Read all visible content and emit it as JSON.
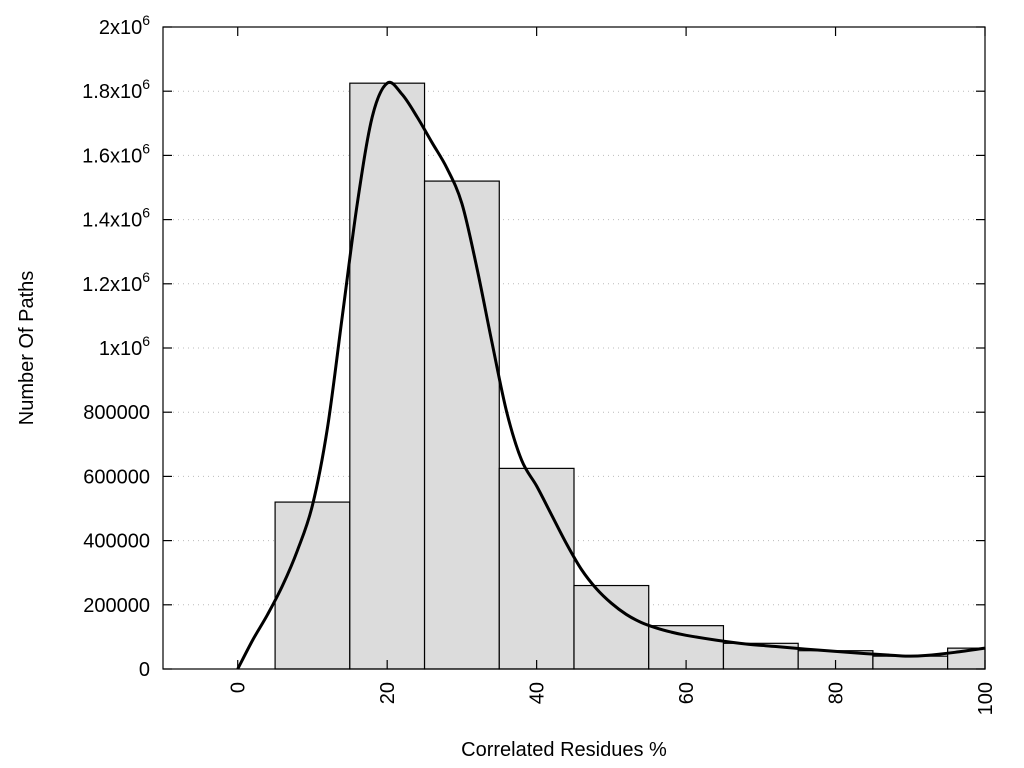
{
  "chart_data": {
    "type": "bar",
    "xlabel": "Correlated Residues %",
    "ylabel": "Number Of Paths",
    "xlim": [
      -10,
      100
    ],
    "ylim": [
      0,
      2000000
    ],
    "x_ticks": [
      {
        "value": 0,
        "label": "0"
      },
      {
        "value": 20,
        "label": "20"
      },
      {
        "value": 40,
        "label": "40"
      },
      {
        "value": 60,
        "label": "60"
      },
      {
        "value": 80,
        "label": "80"
      },
      {
        "value": 100,
        "label": "100"
      }
    ],
    "y_ticks": [
      {
        "value": 0,
        "label": "0"
      },
      {
        "value": 200000,
        "label": "200000"
      },
      {
        "value": 400000,
        "label": "400000"
      },
      {
        "value": 600000,
        "label": "600000"
      },
      {
        "value": 800000,
        "label": "800000"
      },
      {
        "value": 1000000,
        "label": "1x10",
        "sup": "6"
      },
      {
        "value": 1200000,
        "label": "1.2x10",
        "sup": "6"
      },
      {
        "value": 1400000,
        "label": "1.4x10",
        "sup": "6"
      },
      {
        "value": 1600000,
        "label": "1.6x10",
        "sup": "6"
      },
      {
        "value": 1800000,
        "label": "1.8x10",
        "sup": "6"
      },
      {
        "value": 2000000,
        "label": "2x10",
        "sup": "6"
      }
    ],
    "bin_width": 10,
    "bars": [
      {
        "x": 10,
        "value": 520000
      },
      {
        "x": 20,
        "value": 1825000
      },
      {
        "x": 30,
        "value": 1520000
      },
      {
        "x": 40,
        "value": 625000
      },
      {
        "x": 50,
        "value": 260000
      },
      {
        "x": 60,
        "value": 135000
      },
      {
        "x": 70,
        "value": 80000
      },
      {
        "x": 80,
        "value": 57000
      },
      {
        "x": 90,
        "value": 40000
      },
      {
        "x": 100,
        "value": 65000
      }
    ],
    "curve": [
      [
        0,
        0
      ],
      [
        2,
        90000
      ],
      [
        4,
        170000
      ],
      [
        6,
        260000
      ],
      [
        8,
        370000
      ],
      [
        10,
        510000
      ],
      [
        12,
        750000
      ],
      [
        14,
        1100000
      ],
      [
        16,
        1450000
      ],
      [
        18,
        1720000
      ],
      [
        20,
        1825000
      ],
      [
        22,
        1790000
      ],
      [
        24,
        1720000
      ],
      [
        26,
        1640000
      ],
      [
        28,
        1560000
      ],
      [
        30,
        1450000
      ],
      [
        32,
        1250000
      ],
      [
        34,
        1020000
      ],
      [
        36,
        800000
      ],
      [
        38,
        650000
      ],
      [
        40,
        570000
      ],
      [
        42,
        480000
      ],
      [
        44,
        390000
      ],
      [
        46,
        310000
      ],
      [
        48,
        250000
      ],
      [
        50,
        205000
      ],
      [
        52,
        170000
      ],
      [
        54,
        145000
      ],
      [
        56,
        128000
      ],
      [
        58,
        115000
      ],
      [
        60,
        105000
      ],
      [
        64,
        90000
      ],
      [
        68,
        78000
      ],
      [
        72,
        70000
      ],
      [
        76,
        62000
      ],
      [
        80,
        55000
      ],
      [
        84,
        48000
      ],
      [
        88,
        42000
      ],
      [
        90,
        40000
      ],
      [
        92,
        42000
      ],
      [
        96,
        52000
      ],
      [
        100,
        65000
      ]
    ],
    "grid": "horizontal dotted"
  }
}
